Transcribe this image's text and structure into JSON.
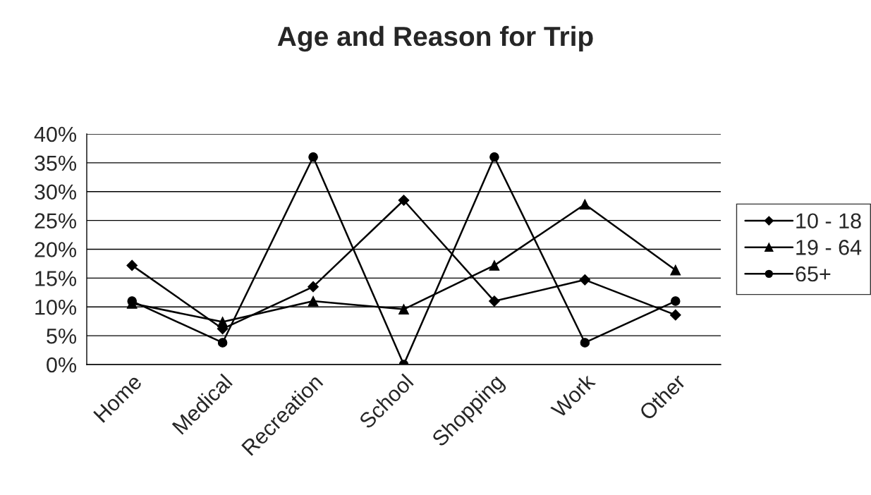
{
  "chart_data": {
    "type": "line",
    "title": "Age and Reason for Trip",
    "categories": [
      "Home",
      "Medical",
      "Recreation",
      "School",
      "Shopping",
      "Work",
      "Other"
    ],
    "series": [
      {
        "name": "10 - 18",
        "color": "#000000",
        "marker": "diamond",
        "values": [
          17.2,
          6.2,
          13.5,
          28.5,
          11.0,
          14.7,
          8.6
        ]
      },
      {
        "name": "19 - 64",
        "color": "#000000",
        "marker": "triangle",
        "values": [
          10.6,
          7.4,
          11.0,
          9.6,
          17.2,
          27.8,
          16.4
        ]
      },
      {
        "name": "65+",
        "color": "#000000",
        "marker": "circle",
        "values": [
          11.0,
          3.8,
          36.0,
          0.0,
          36.0,
          3.8,
          11.0
        ]
      }
    ],
    "ylim": [
      0,
      40
    ],
    "yticks": [
      {
        "value": 0,
        "label": "0%"
      },
      {
        "value": 5,
        "label": "5%"
      },
      {
        "value": 10,
        "label": "10%"
      },
      {
        "value": 15,
        "label": "15%"
      },
      {
        "value": 20,
        "label": "20%"
      },
      {
        "value": 25,
        "label": "25%"
      },
      {
        "value": 30,
        "label": "30%"
      },
      {
        "value": 35,
        "label": "35%"
      },
      {
        "value": 40,
        "label": "40%"
      }
    ],
    "grid": "y",
    "legend": "right",
    "line_style": "solid"
  }
}
